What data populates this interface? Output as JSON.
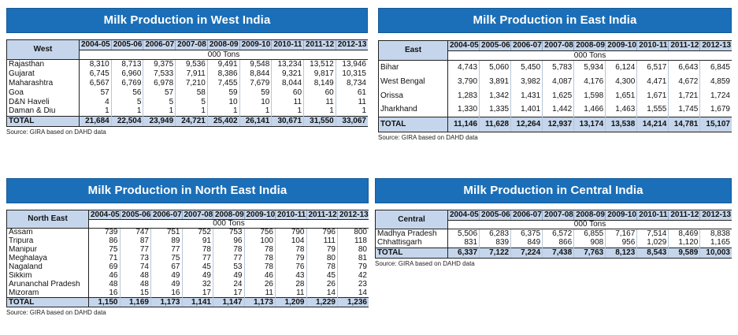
{
  "unit_label": "000 Tons",
  "years": [
    "2004-05",
    "2005-06",
    "2006-07",
    "2007-08",
    "2008-09",
    "2009-10",
    "2010-11",
    "2011-12",
    "2012-13"
  ],
  "source": "Source: GIRA based on DAHD data",
  "total_label": "TOTAL",
  "west": {
    "title": "Milk Production in West India",
    "region_label": "West",
    "rows": [
      {
        "name": "Rajasthan",
        "v": [
          "8,310",
          "8,713",
          "9,375",
          "9,536",
          "9,491",
          "9,548",
          "13,234",
          "13,512",
          "13,946"
        ]
      },
      {
        "name": "Gujarat",
        "v": [
          "6,745",
          "6,960",
          "7,533",
          "7,911",
          "8,386",
          "8,844",
          "9,321",
          "9,817",
          "10,315"
        ]
      },
      {
        "name": "Maharashtra",
        "v": [
          "6,567",
          "6,769",
          "6,978",
          "7,210",
          "7,455",
          "7,679",
          "8,044",
          "8,149",
          "8,734"
        ]
      },
      {
        "name": "Goa",
        "v": [
          "57",
          "56",
          "57",
          "58",
          "59",
          "59",
          "60",
          "60",
          "61"
        ]
      },
      {
        "name": "D&N Haveli",
        "v": [
          "4",
          "5",
          "5",
          "5",
          "10",
          "10",
          "11",
          "11",
          "11"
        ]
      },
      {
        "name": "Daman & Diu",
        "v": [
          "1",
          "1",
          "1",
          "1",
          "1",
          "1",
          "1",
          "1",
          "1"
        ]
      }
    ],
    "total": [
      "21,684",
      "22,504",
      "23,949",
      "24,721",
      "25,402",
      "26,141",
      "30,671",
      "31,550",
      "33,067"
    ]
  },
  "east": {
    "title": "Milk Production in East India",
    "region_label": "East",
    "rows": [
      {
        "name": "Bihar",
        "v": [
          "4,743",
          "5,060",
          "5,450",
          "5,783",
          "5,934",
          "6,124",
          "6,517",
          "6,643",
          "6,845"
        ]
      },
      {
        "name": "West Bengal",
        "v": [
          "3,790",
          "3,891",
          "3,982",
          "4,087",
          "4,176",
          "4,300",
          "4,471",
          "4,672",
          "4,859"
        ]
      },
      {
        "name": "Orissa",
        "v": [
          "1,283",
          "1,342",
          "1,431",
          "1,625",
          "1,598",
          "1,651",
          "1,671",
          "1,721",
          "1,724"
        ]
      },
      {
        "name": "Jharkhand",
        "v": [
          "1,330",
          "1,335",
          "1,401",
          "1,442",
          "1,466",
          "1,463",
          "1,555",
          "1,745",
          "1,679"
        ]
      }
    ],
    "total": [
      "11,146",
      "11,628",
      "12,264",
      "12,937",
      "13,174",
      "13,538",
      "14,214",
      "14,781",
      "15,107"
    ]
  },
  "northeast": {
    "title": "Milk Production in North East India",
    "region_label": "North East",
    "rows": [
      {
        "name": "Assam",
        "v": [
          "739",
          "747",
          "751",
          "752",
          "753",
          "756",
          "790",
          "796",
          "800"
        ]
      },
      {
        "name": "Tripura",
        "v": [
          "86",
          "87",
          "89",
          "91",
          "96",
          "100",
          "104",
          "111",
          "118"
        ]
      },
      {
        "name": "Manipur",
        "v": [
          "75",
          "77",
          "77",
          "78",
          "78",
          "78",
          "78",
          "79",
          "80"
        ]
      },
      {
        "name": "Meghalaya",
        "v": [
          "71",
          "73",
          "75",
          "77",
          "77",
          "78",
          "79",
          "80",
          "81"
        ]
      },
      {
        "name": "Nagaland",
        "v": [
          "69",
          "74",
          "67",
          "45",
          "53",
          "78",
          "76",
          "78",
          "79"
        ]
      },
      {
        "name": "Sikkim",
        "v": [
          "46",
          "48",
          "49",
          "49",
          "49",
          "46",
          "43",
          "45",
          "42"
        ]
      },
      {
        "name": "Arunanchal Pradesh",
        "v": [
          "48",
          "48",
          "49",
          "32",
          "24",
          "26",
          "28",
          "26",
          "23"
        ]
      },
      {
        "name": "Mizoram",
        "v": [
          "16",
          "15",
          "16",
          "17",
          "17",
          "11",
          "11",
          "14",
          "14"
        ]
      }
    ],
    "total": [
      "1,150",
      "1,169",
      "1,173",
      "1,141",
      "1,147",
      "1,173",
      "1,209",
      "1,229",
      "1,236"
    ]
  },
  "central": {
    "title": "Milk Production in Central India",
    "region_label": "Central",
    "rows": [
      {
        "name": "Madhya Pradesh",
        "v": [
          "5,506",
          "6,283",
          "6,375",
          "6,572",
          "6,855",
          "7,167",
          "7,514",
          "8,469",
          "8,838"
        ]
      },
      {
        "name": "Chhattisgarh",
        "v": [
          "831",
          "839",
          "849",
          "866",
          "908",
          "956",
          "1,029",
          "1,120",
          "1,165"
        ]
      }
    ],
    "total": [
      "6,337",
      "7,122",
      "7,224",
      "7,438",
      "7,763",
      "8,123",
      "8,543",
      "9,589",
      "10,003"
    ]
  }
}
